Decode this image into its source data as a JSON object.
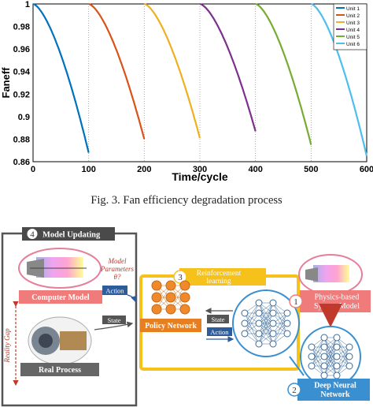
{
  "chart_data": {
    "type": "line",
    "xlabel": "Time/cycle",
    "ylabel": "Faneff",
    "xlim": [
      0,
      600
    ],
    "ylim": [
      0.86,
      1.0
    ],
    "x_ticks": [
      "0",
      "100",
      "200",
      "300",
      "400",
      "500",
      "600"
    ],
    "y_ticks": [
      "0.86",
      "0.88",
      "0.9",
      "0.92",
      "0.94",
      "0.96",
      "0.98",
      "1"
    ],
    "grid": "vertical dotted",
    "legend_position": "top-right",
    "series": [
      {
        "name": "Unit 1",
        "color": "#0072bd",
        "start": 0,
        "end": 100,
        "end_value": 0.868
      },
      {
        "name": "Unit 2",
        "color": "#d95319",
        "start": 100,
        "end": 200,
        "end_value": 0.88
      },
      {
        "name": "Unit 3",
        "color": "#edb120",
        "start": 200,
        "end": 300,
        "end_value": 0.881
      },
      {
        "name": "Unit 4",
        "color": "#7e2f8e",
        "start": 300,
        "end": 400,
        "end_value": 0.887
      },
      {
        "name": "Unit 5",
        "color": "#77ac30",
        "start": 400,
        "end": 500,
        "end_value": 0.875
      },
      {
        "name": "Unit 6",
        "color": "#4dbeee",
        "start": 500,
        "end": 600,
        "end_value": 0.865
      }
    ]
  },
  "caption": "Fig. 3.   Fan efficiency degradation process",
  "diagram": {
    "model_updating": {
      "number": "4",
      "title": "Model Updating"
    },
    "computer_model": "Computer Model",
    "real_process": "Real Process",
    "model_parameters": {
      "line1": "Model",
      "line2": "Parameters",
      "line3": "θ?"
    },
    "reality_gap": "Reality Gap",
    "action_label": "Action",
    "state_label": "State",
    "policy_network": "Policy Network",
    "rl": {
      "number": "3",
      "line1": "Reinforcement",
      "line2": "learning"
    },
    "rl_state": "State",
    "rl_action": "Action",
    "physics": {
      "number": "1",
      "line1": "Physics-based",
      "line2": "System Model"
    },
    "dnn": {
      "number": "2",
      "line1": "Deep Neural",
      "line2": "Network"
    }
  }
}
